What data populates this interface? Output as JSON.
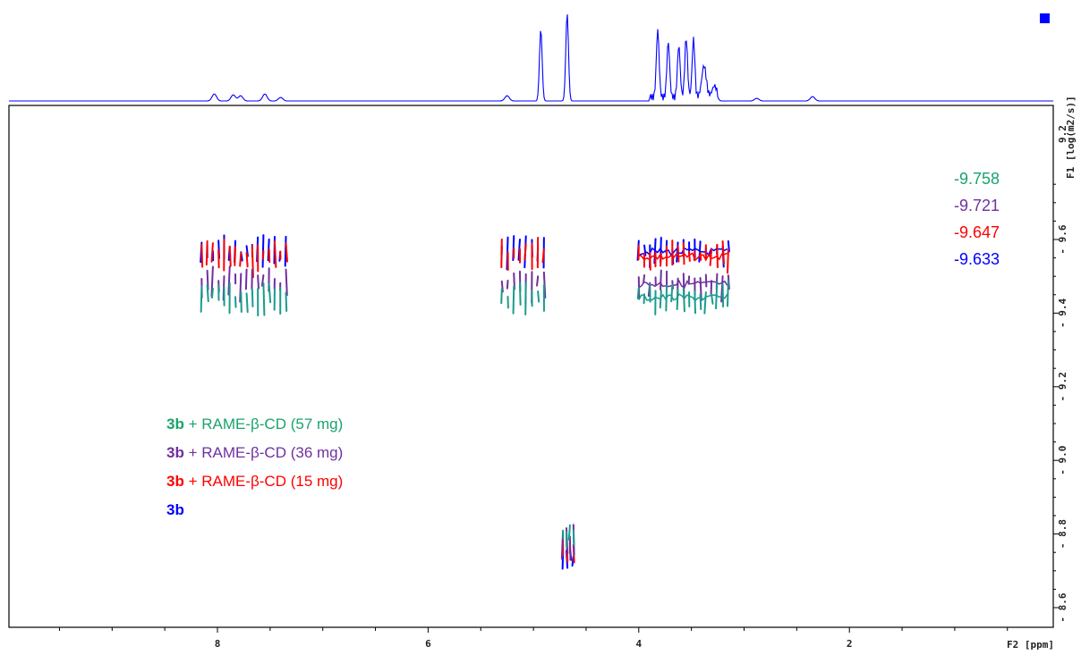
{
  "chart_data": {
    "type": "scatter",
    "title": "",
    "x_axis": {
      "label": "F2 [ppm]",
      "range": [
        9.9,
        0.1
      ],
      "ticks": [
        8,
        6,
        4,
        2
      ],
      "reversed": true
    },
    "y_axis": {
      "label": "F1 [log(m2/s)]",
      "range": [
        -8.5,
        -9.3
      ],
      "ticks": [
        -9.2,
        -9.0,
        -8.8,
        -8.6,
        -9.6,
        -9.4
      ],
      "tick_labels": [
        "9.2",
        "9.0",
        "8.8",
        "8.6",
        "- 9.6",
        "- 9.4"
      ]
    },
    "tick_display": {
      "x": [
        "8",
        "6",
        "4",
        "2"
      ],
      "y": [
        "- 9.6",
        "- 9.4",
        "- 9.2",
        "- 9.0",
        "- 8.8",
        "- 8.6"
      ],
      "y_extra": "9.2"
    },
    "diffusion_values": [
      {
        "label": "-9.758",
        "color": "#1aa36c"
      },
      {
        "label": "-9.721",
        "color": "#7030a0"
      },
      {
        "label": "-9.647",
        "color": "#ff0000"
      },
      {
        "label": "-9.633",
        "color": "#0000ff"
      }
    ],
    "legend": [
      {
        "bold": "3b",
        "text": " + RAME-β-CD (57 mg)",
        "color": "#1aa36c"
      },
      {
        "bold": "3b",
        "text": " + RAME-β-CD (36 mg)",
        "color": "#7030a0"
      },
      {
        "bold": "3b",
        "text": " + RAME-β-CD (15 mg)",
        "color": "#ff0000"
      },
      {
        "bold": "3b",
        "text": "",
        "color": "#0000ff"
      }
    ],
    "series": [
      {
        "name": "3b + RAME-β-CD (57 mg)",
        "color": "#1a9c8c",
        "diffusion": -9.758
      },
      {
        "name": "3b + RAME-β-CD (36 mg)",
        "color": "#7030a0",
        "diffusion": -9.721
      },
      {
        "name": "3b + RAME-β-CD (15 mg)",
        "color": "#ff0000",
        "diffusion": -9.647
      },
      {
        "name": "3b",
        "color": "#0000ff",
        "diffusion": -9.633
      }
    ],
    "clusters": [
      {
        "x_range": [
          8.15,
          7.35
        ],
        "kind": "aromatic"
      },
      {
        "x_range": [
          5.3,
          4.9
        ],
        "kind": "anomeric"
      },
      {
        "x_range": [
          4.0,
          3.15
        ],
        "kind": "ring"
      },
      {
        "x_range": [
          4.72,
          4.62
        ],
        "kind": "water",
        "low": true
      }
    ],
    "projection_peaks": [
      {
        "x": 8.03,
        "h": 0.08
      },
      {
        "x": 7.85,
        "h": 0.07
      },
      {
        "x": 7.78,
        "h": 0.06
      },
      {
        "x": 7.55,
        "h": 0.08
      },
      {
        "x": 7.4,
        "h": 0.04
      },
      {
        "x": 5.25,
        "h": 0.06
      },
      {
        "x": 4.93,
        "h": 0.82
      },
      {
        "x": 4.68,
        "h": 1.0
      },
      {
        "x": 3.82,
        "h": 0.76
      },
      {
        "x": 3.72,
        "h": 0.62
      },
      {
        "x": 3.62,
        "h": 0.58
      },
      {
        "x": 3.55,
        "h": 0.68
      },
      {
        "x": 3.48,
        "h": 0.66
      },
      {
        "x": 3.38,
        "h": 0.35
      },
      {
        "x": 3.28,
        "h": 0.12
      },
      {
        "x": 2.35,
        "h": 0.05
      },
      {
        "x": 2.88,
        "h": 0.03
      }
    ],
    "grid": false
  }
}
